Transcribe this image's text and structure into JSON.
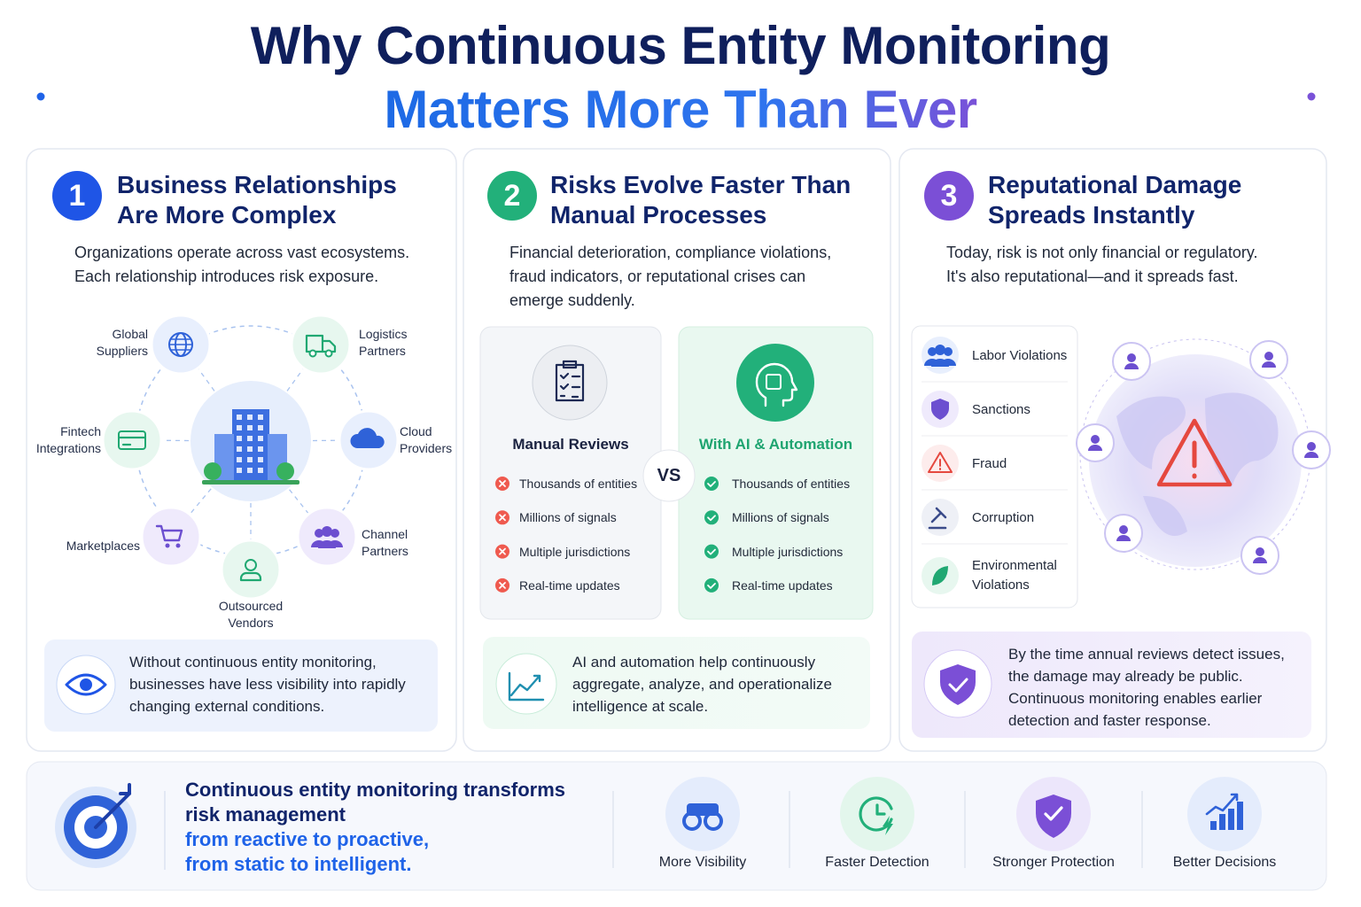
{
  "header": {
    "title": "Why Continuous Entity Monitoring",
    "subtitle": "Matters More Than Ever"
  },
  "panels": [
    {
      "number": "1",
      "title": [
        "Business Relationships",
        "Are More Complex"
      ],
      "description": [
        "Organizations operate across vast ecosystems.",
        "Each relationship introduces risk exposure."
      ],
      "nodes": [
        "Global Suppliers",
        "Logistics Partners",
        "Cloud Providers",
        "Channel Partners",
        "Outsourced Vendors",
        "Marketplaces",
        "Fintech Integrations"
      ],
      "callout": [
        "Without continuous entity monitoring,",
        "businesses have less visibility into rapidly",
        "changing external conditions."
      ]
    },
    {
      "number": "2",
      "title": [
        "Risks Evolve Faster Than",
        "Manual Processes"
      ],
      "description": [
        "Financial deterioration, compliance violations,",
        "fraud indicators, or reputational crises can",
        "emerge suddenly."
      ],
      "manual": {
        "title": "Manual Reviews",
        "items": [
          "Thousands of entities",
          "Millions of signals",
          "Multiple jurisdictions",
          "Real-time updates"
        ]
      },
      "vs": "VS",
      "automated": {
        "title": "With AI & Automation",
        "items": [
          "Thousands of entities",
          "Millions of signals",
          "Multiple jurisdictions",
          "Real-time updates"
        ]
      },
      "callout": [
        "AI and automation help continuously",
        "aggregate, analyze, and operationalize",
        "intelligence at scale."
      ]
    },
    {
      "number": "3",
      "title": [
        "Reputational Damage",
        "Spreads Instantly"
      ],
      "description": [
        "Today, risk is not only financial or regulatory.",
        "It's also reputational—and it spreads fast."
      ],
      "risks": [
        "Labor Violations",
        "Sanctions",
        "Fraud",
        "Corruption",
        "Environmental Violations"
      ],
      "callout": [
        "By the time annual reviews detect issues,",
        "the damage may already be public.",
        "Continuous monitoring enables earlier",
        "detection and faster response."
      ]
    }
  ],
  "summary": {
    "lines": [
      "Continuous entity monitoring transforms",
      "risk management"
    ],
    "highlight_lines": [
      "from reactive to proactive,",
      "from static to intelligent."
    ],
    "benefits": [
      "More Visibility",
      "Faster Detection",
      "Stronger Protection",
      "Better Decisions"
    ]
  }
}
